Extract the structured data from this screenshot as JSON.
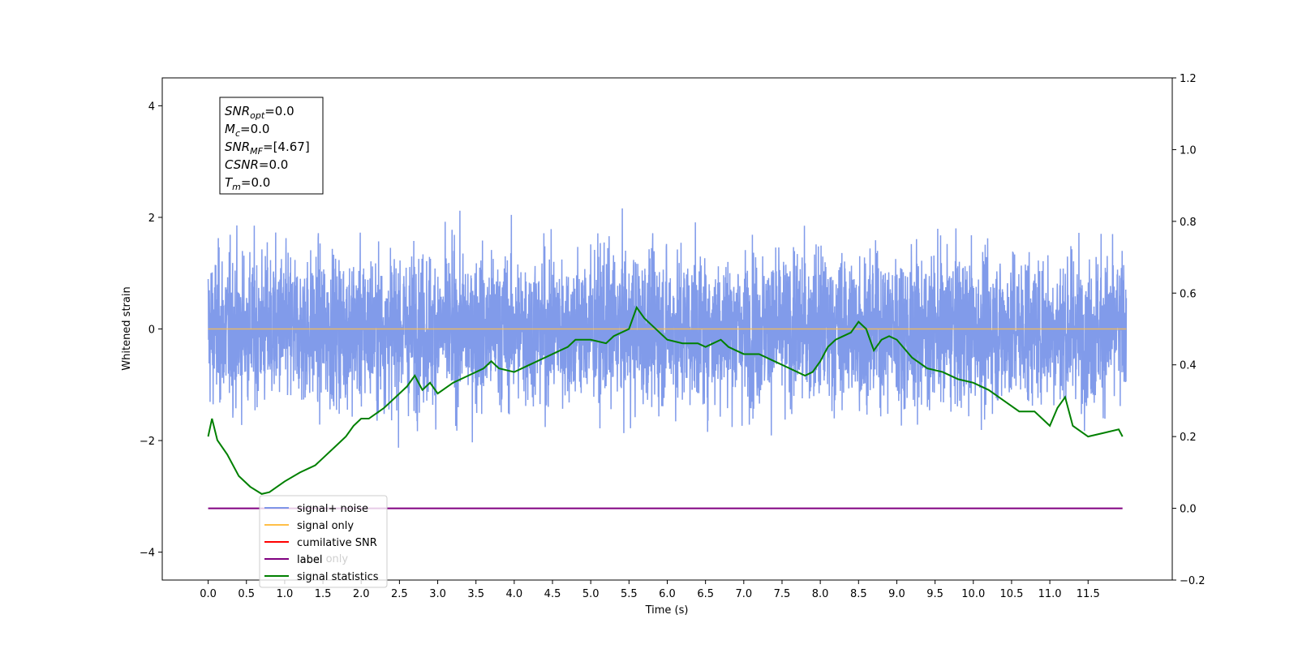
{
  "chart_data": {
    "type": "line",
    "xlabel": "Time (s)",
    "ylabel": "Whitened strain",
    "xlim": [
      -0.6,
      12.6
    ],
    "ylim": [
      -4.5,
      4.5
    ],
    "y2lim": [
      -0.2,
      1.2
    ],
    "x_ticks": [
      "0.0",
      "0.5",
      "1.0",
      "1.5",
      "2.0",
      "2.5",
      "3.0",
      "3.5",
      "4.0",
      "4.5",
      "5.0",
      "5.5",
      "6.0",
      "6.5",
      "7.0",
      "7.5",
      "8.0",
      "8.5",
      "9.0",
      "9.5",
      "10.0",
      "10.5",
      "11.0",
      "11.5"
    ],
    "y_ticks": [
      "−4",
      "−2",
      "0",
      "2",
      "4"
    ],
    "y2_ticks": [
      "−0.2",
      "0.0",
      "0.2",
      "0.4",
      "0.6",
      "0.8",
      "1.0",
      "1.2"
    ],
    "series": [
      {
        "name": "signal+ noise",
        "color": "#6b8ae6",
        "axis": "left",
        "description_kind": "noise",
        "t_range": [
          0.0,
          12.0
        ]
      },
      {
        "name": "signal only",
        "color": "#ffbf47",
        "axis": "left",
        "x": [
          0.0,
          12.0
        ],
        "values": [
          0.0,
          0.0
        ]
      },
      {
        "name": "cumilative SNR",
        "color": "#ff0000",
        "axis": "left",
        "x": [],
        "values": []
      },
      {
        "name": "label",
        "color": "#800080",
        "axis": "right",
        "x": [
          0.0,
          11.95
        ],
        "values": [
          0.0,
          0.0
        ]
      },
      {
        "name": "signal statistics",
        "color": "#008000",
        "axis": "right",
        "x": [
          0.0,
          0.05,
          0.12,
          0.25,
          0.4,
          0.55,
          0.7,
          0.8,
          0.9,
          1.0,
          1.2,
          1.4,
          1.5,
          1.7,
          1.8,
          1.9,
          2.0,
          2.1,
          2.3,
          2.4,
          2.5,
          2.6,
          2.7,
          2.8,
          2.9,
          3.0,
          3.2,
          3.4,
          3.6,
          3.7,
          3.8,
          4.0,
          4.2,
          4.4,
          4.5,
          4.6,
          4.7,
          4.8,
          5.0,
          5.2,
          5.3,
          5.5,
          5.6,
          5.7,
          5.8,
          5.9,
          6.0,
          6.2,
          6.4,
          6.5,
          6.6,
          6.7,
          6.8,
          7.0,
          7.2,
          7.4,
          7.5,
          7.6,
          7.7,
          7.8,
          7.9,
          8.0,
          8.1,
          8.2,
          8.3,
          8.4,
          8.5,
          8.6,
          8.7,
          8.8,
          8.9,
          9.0,
          9.2,
          9.4,
          9.6,
          9.8,
          10.0,
          10.2,
          10.4,
          10.6,
          10.8,
          11.0,
          11.1,
          11.2,
          11.3,
          11.5,
          11.7,
          11.9,
          11.95
        ],
        "values": [
          0.2,
          0.25,
          0.19,
          0.15,
          0.09,
          0.06,
          0.04,
          0.045,
          0.06,
          0.075,
          0.1,
          0.12,
          0.14,
          0.18,
          0.2,
          0.23,
          0.25,
          0.25,
          0.28,
          0.3,
          0.32,
          0.34,
          0.37,
          0.33,
          0.35,
          0.32,
          0.35,
          0.37,
          0.39,
          0.41,
          0.39,
          0.38,
          0.4,
          0.42,
          0.43,
          0.44,
          0.45,
          0.47,
          0.47,
          0.46,
          0.48,
          0.5,
          0.56,
          0.53,
          0.51,
          0.49,
          0.47,
          0.46,
          0.46,
          0.45,
          0.46,
          0.47,
          0.45,
          0.43,
          0.43,
          0.41,
          0.4,
          0.39,
          0.38,
          0.37,
          0.38,
          0.41,
          0.45,
          0.47,
          0.48,
          0.49,
          0.52,
          0.5,
          0.44,
          0.47,
          0.48,
          0.47,
          0.42,
          0.39,
          0.38,
          0.36,
          0.35,
          0.33,
          0.3,
          0.27,
          0.27,
          0.23,
          0.28,
          0.31,
          0.23,
          0.2,
          0.21,
          0.22,
          0.2
        ]
      }
    ],
    "legend": {
      "placement": "lower-left",
      "entries": [
        "signal+ noise",
        "signal only",
        "cumilative SNR",
        "label",
        "signal statistics"
      ],
      "hidden_text": "label only"
    },
    "annotation": {
      "lines": [
        {
          "base": "SNR",
          "sub": "opt",
          "value": "=0.0"
        },
        {
          "base": "M",
          "sub": "c",
          "value": "=0.0"
        },
        {
          "base": "SNR",
          "sub": "MF",
          "value": "=[4.67]"
        },
        {
          "base": "CSNR",
          "sub": "",
          "value": "=0.0"
        },
        {
          "base": "T",
          "sub": "m",
          "value": "=0.0"
        }
      ]
    }
  }
}
